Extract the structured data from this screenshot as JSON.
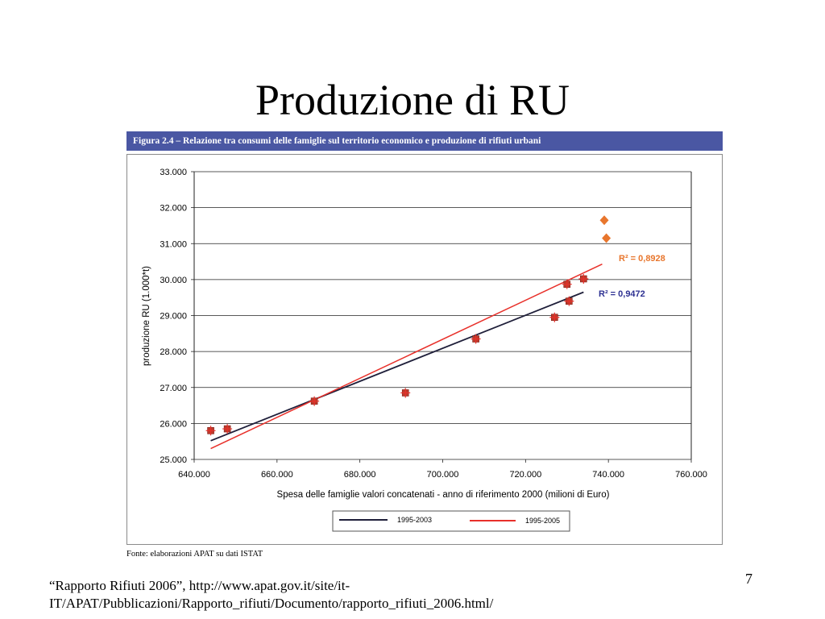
{
  "slide": {
    "title": "Produzione di RU",
    "page_number": "7",
    "reference_line1": "“Rapporto Rifiuti 2006”, http://www.apat.gov.it/site/it-",
    "reference_line2": "IT/APAT/Pubblicazioni/Rapporto_rifiuti/Documento/rapporto_rifiuti_2006.html/"
  },
  "figure": {
    "header": "Figura 2.4 – Relazione tra consumi delle famiglie sul territorio economico e produzione di rifiuti urbani",
    "source": "Fonte: elaborazioni APAT su dati ISTAT"
  },
  "colors": {
    "header_bg": "#4a57a3",
    "line_1995_2003": "#1f1f3a",
    "line_1995_2005": "#e8302a",
    "points_1995_2003": "#c0392b",
    "points_2004_2005": "#e8762d",
    "r2_1995_2003": "#2e3192",
    "r2_1995_2005": "#e8762d"
  },
  "chart_data": {
    "type": "scatter",
    "xlabel": "Spesa delle famiglie valori concatenati - anno di riferimento 2000 (milioni di Euro)",
    "ylabel": "produzione RU (1.000*t)",
    "xlim": [
      640000,
      760000
    ],
    "ylim": [
      25000,
      33000
    ],
    "xticks": [
      640000,
      660000,
      680000,
      700000,
      720000,
      740000,
      760000
    ],
    "yticks": [
      25000,
      26000,
      27000,
      28000,
      29000,
      30000,
      31000,
      32000,
      33000
    ],
    "xtick_labels": [
      "640.000",
      "660.000",
      "680.000",
      "700.000",
      "720.000",
      "740.000",
      "760.000"
    ],
    "ytick_labels": [
      "25.000",
      "26.000",
      "27.000",
      "28.000",
      "29.000",
      "30.000",
      "31.000",
      "32.000",
      "33.000"
    ],
    "grid": true,
    "series": [
      {
        "marker": "square",
        "points": [
          {
            "x": 644000,
            "y": 25800
          },
          {
            "x": 648000,
            "y": 25850
          },
          {
            "x": 669000,
            "y": 26620
          },
          {
            "x": 691000,
            "y": 26850
          },
          {
            "x": 708000,
            "y": 28350
          },
          {
            "x": 727000,
            "y": 28950
          },
          {
            "x": 730000,
            "y": 29870
          },
          {
            "x": 730500,
            "y": 29400
          },
          {
            "x": 734000,
            "y": 30020
          }
        ]
      },
      {
        "marker": "diamond",
        "points": [
          {
            "x": 739000,
            "y": 31650
          },
          {
            "x": 739500,
            "y": 31150
          }
        ]
      }
    ],
    "trendlines": [
      {
        "name": "1995-2003",
        "from": {
          "x": 644000,
          "y": 25520
        },
        "to": {
          "x": 734000,
          "y": 29650
        },
        "r2_label": "R² = 0,9472"
      },
      {
        "name": "1995-2005",
        "from": {
          "x": 644000,
          "y": 25300
        },
        "to": {
          "x": 738500,
          "y": 30430
        },
        "r2_label": "R² = 0,8928"
      }
    ],
    "legend": {
      "position": "bottom",
      "entries": [
        "1995-2003",
        "1995-2005"
      ]
    }
  }
}
